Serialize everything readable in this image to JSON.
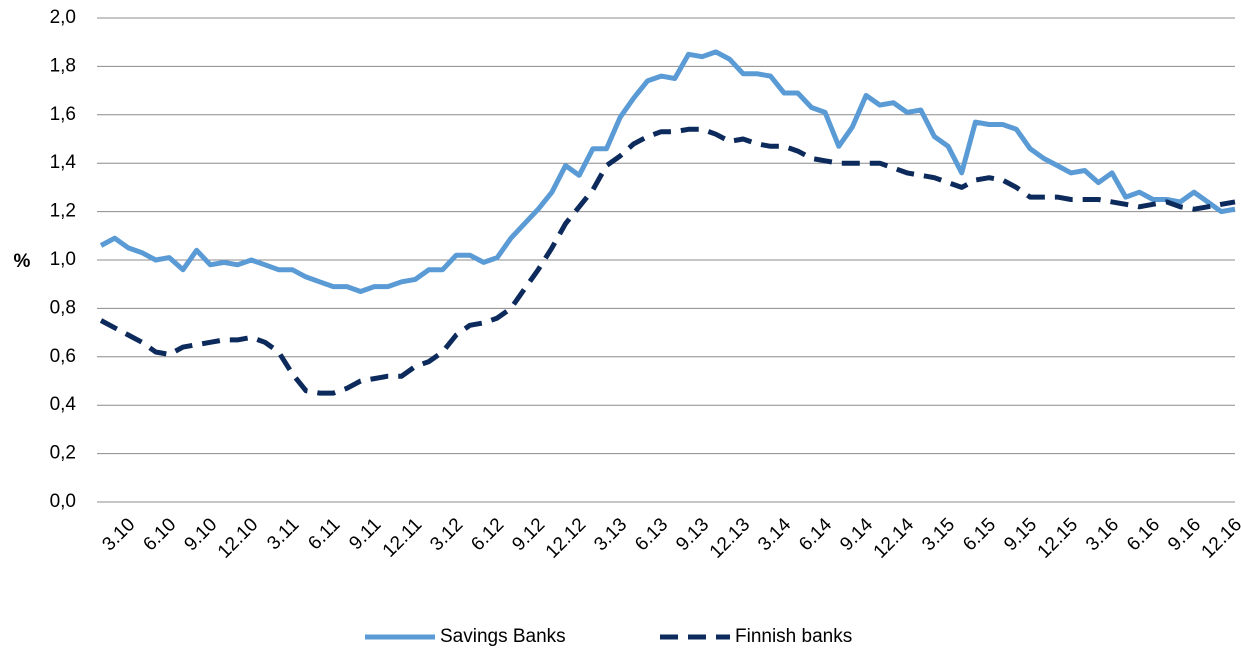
{
  "chart_data": {
    "type": "line",
    "y_label": "%",
    "categories": [
      null,
      null,
      "3.10",
      null,
      null,
      "6.10",
      null,
      null,
      "9.10",
      null,
      null,
      "12.10",
      null,
      null,
      "3.11",
      null,
      null,
      "6.11",
      null,
      null,
      "9.11",
      null,
      null,
      "12.11",
      null,
      null,
      "3.12",
      null,
      null,
      "6.12",
      null,
      null,
      "9.12",
      null,
      null,
      "12.12",
      null,
      null,
      "3.13",
      null,
      null,
      "6.13",
      null,
      null,
      "9.13",
      null,
      null,
      "12.13",
      null,
      null,
      "3.14",
      null,
      null,
      "6.14",
      null,
      null,
      "9.14",
      null,
      null,
      "12.14",
      null,
      null,
      "3.15",
      null,
      null,
      "6.15",
      null,
      null,
      "9.15",
      null,
      null,
      "12.15",
      null,
      null,
      "3.16",
      null,
      null,
      "6.16",
      null,
      null,
      "9.16",
      null,
      null,
      "12.16"
    ],
    "series": [
      {
        "name": "Savings Banks",
        "color": "#5b9bd5",
        "dashed": false,
        "values": [
          1.06,
          1.09,
          1.05,
          1.03,
          1.0,
          1.01,
          0.96,
          1.04,
          0.98,
          0.99,
          0.98,
          1.0,
          0.98,
          0.96,
          0.96,
          0.93,
          0.91,
          0.89,
          0.89,
          0.87,
          0.89,
          0.89,
          0.91,
          0.92,
          0.96,
          0.96,
          1.02,
          1.02,
          0.99,
          1.01,
          1.09,
          1.15,
          1.21,
          1.28,
          1.39,
          1.35,
          1.46,
          1.46,
          1.59,
          1.67,
          1.74,
          1.76,
          1.75,
          1.85,
          1.84,
          1.86,
          1.83,
          1.77,
          1.77,
          1.76,
          1.69,
          1.69,
          1.63,
          1.61,
          1.47,
          1.55,
          1.68,
          1.64,
          1.65,
          1.61,
          1.62,
          1.51,
          1.47,
          1.36,
          1.57,
          1.56,
          1.56,
          1.54,
          1.46,
          1.42,
          1.39,
          1.36,
          1.37,
          1.32,
          1.36,
          1.26,
          1.28,
          1.25,
          1.25,
          1.24,
          1.28,
          1.24,
          1.2,
          1.21
        ]
      },
      {
        "name": "Finnish banks",
        "color": "#0c2a5b",
        "dashed": true,
        "values": [
          0.75,
          0.72,
          0.69,
          0.66,
          0.62,
          0.61,
          0.64,
          0.65,
          0.66,
          0.67,
          0.67,
          0.68,
          0.66,
          0.62,
          0.53,
          0.46,
          0.45,
          0.45,
          0.47,
          0.5,
          0.51,
          0.52,
          0.52,
          0.56,
          0.58,
          0.62,
          0.69,
          0.73,
          0.74,
          0.76,
          0.8,
          0.88,
          0.96,
          1.05,
          1.15,
          1.22,
          1.29,
          1.39,
          1.43,
          1.48,
          1.51,
          1.53,
          1.53,
          1.54,
          1.54,
          1.52,
          1.49,
          1.5,
          1.48,
          1.47,
          1.47,
          1.45,
          1.42,
          1.41,
          1.4,
          1.4,
          1.4,
          1.4,
          1.38,
          1.36,
          1.35,
          1.34,
          1.32,
          1.3,
          1.33,
          1.34,
          1.33,
          1.3,
          1.26,
          1.26,
          1.26,
          1.25,
          1.25,
          1.25,
          1.24,
          1.23,
          1.22,
          1.23,
          1.24,
          1.22,
          1.21,
          1.22,
          1.23,
          1.24
        ]
      }
    ],
    "ylim": [
      0,
      2
    ],
    "yticks": [
      {
        "value": 0,
        "label": "0,0"
      },
      {
        "value": 0.2,
        "label": "0,2"
      },
      {
        "value": 0.4,
        "label": "0,4"
      },
      {
        "value": 0.6,
        "label": "0,6"
      },
      {
        "value": 0.8,
        "label": "0,8"
      },
      {
        "value": 1,
        "label": "1,0"
      },
      {
        "value": 1.2,
        "label": "1,2"
      },
      {
        "value": 1.4,
        "label": "1,4"
      },
      {
        "value": 1.6,
        "label": "1,6"
      },
      {
        "value": 1.8,
        "label": "1,8"
      },
      {
        "value": 2,
        "label": "2,0"
      }
    ],
    "grid": true,
    "legend": "bottom"
  }
}
